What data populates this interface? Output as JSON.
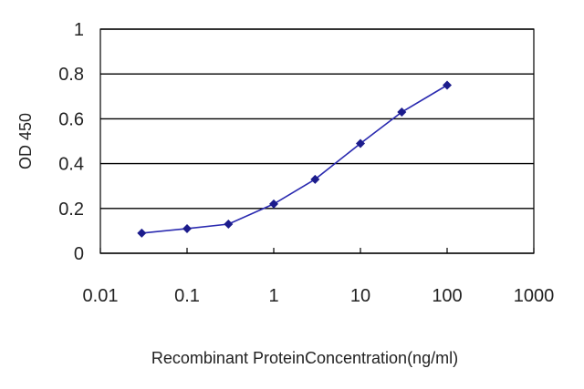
{
  "chart_data": {
    "type": "line",
    "title": "",
    "xlabel": "Recombinant ProteinConcentration(ng/ml)",
    "ylabel": "OD 450",
    "x_scale": "log",
    "xlim": [
      0.01,
      1000
    ],
    "ylim": [
      0,
      1
    ],
    "x_ticks": [
      "0.01",
      "0.1",
      "1",
      "10",
      "100",
      "1000"
    ],
    "y_ticks": [
      "0",
      "0.2",
      "0.4",
      "0.6",
      "0.8",
      "1"
    ],
    "grid": "horizontal",
    "legend": "none",
    "series": [
      {
        "x": [
          0.03,
          0.1,
          0.3,
          1,
          3,
          10,
          30,
          100
        ],
        "y": [
          0.09,
          0.11,
          0.13,
          0.22,
          0.33,
          0.49,
          0.63,
          0.75
        ]
      }
    ],
    "colors": {
      "series": "#2a2ab0",
      "marker": "#1c1c8c",
      "plot_background": "#ffffff",
      "gridline": "#000000"
    }
  }
}
